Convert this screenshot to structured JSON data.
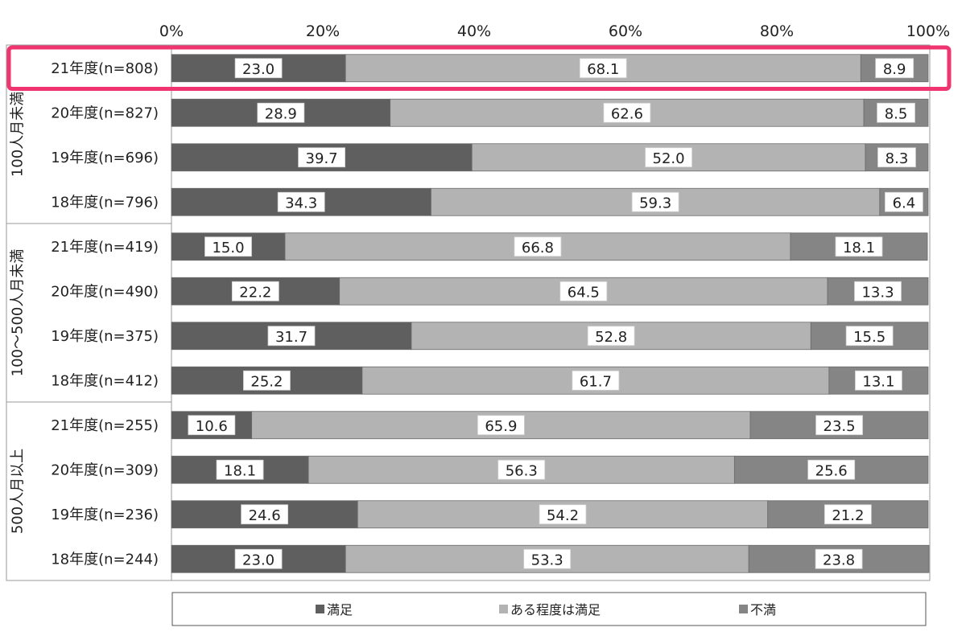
{
  "chart_data": {
    "type": "bar",
    "orientation": "horizontal",
    "stacked": true,
    "percent": true,
    "xlim": [
      0,
      100
    ],
    "x_ticks": [
      "0%",
      "20%",
      "40%",
      "60%",
      "80%",
      "100%"
    ],
    "x_tick_values": [
      0,
      20,
      40,
      60,
      80,
      100
    ],
    "legend_position": "bottom",
    "highlighted_category_index": 0,
    "highlight_color": "#f0346f",
    "groups": [
      {
        "label": "100人月未満",
        "start": 0,
        "count": 4
      },
      {
        "label": "100〜500人月未満",
        "start": 4,
        "count": 4
      },
      {
        "label": "500人月以上",
        "start": 8,
        "count": 4
      }
    ],
    "categories": [
      "21年度(n=808)",
      "20年度(n=827)",
      "19年度(n=696)",
      "18年度(n=796)",
      "21年度(n=419)",
      "20年度(n=490)",
      "19年度(n=375)",
      "18年度(n=412)",
      "21年度(n=255)",
      "20年度(n=309)",
      "19年度(n=236)",
      "18年度(n=244)"
    ],
    "series": [
      {
        "name": "満足",
        "color": "#5f5f5f",
        "values": [
          23.0,
          28.9,
          39.7,
          34.3,
          15.0,
          22.2,
          31.7,
          25.2,
          10.6,
          18.1,
          24.6,
          23.0
        ]
      },
      {
        "name": "ある程度は満足",
        "color": "#b3b3b3",
        "values": [
          68.1,
          62.6,
          52.0,
          59.3,
          66.8,
          64.5,
          52.8,
          61.7,
          65.9,
          56.3,
          54.2,
          53.3
        ]
      },
      {
        "name": "不満",
        "color": "#858585",
        "values": [
          8.9,
          8.5,
          8.3,
          6.4,
          18.1,
          13.3,
          15.5,
          13.1,
          23.5,
          25.6,
          21.2,
          23.8
        ]
      }
    ]
  }
}
